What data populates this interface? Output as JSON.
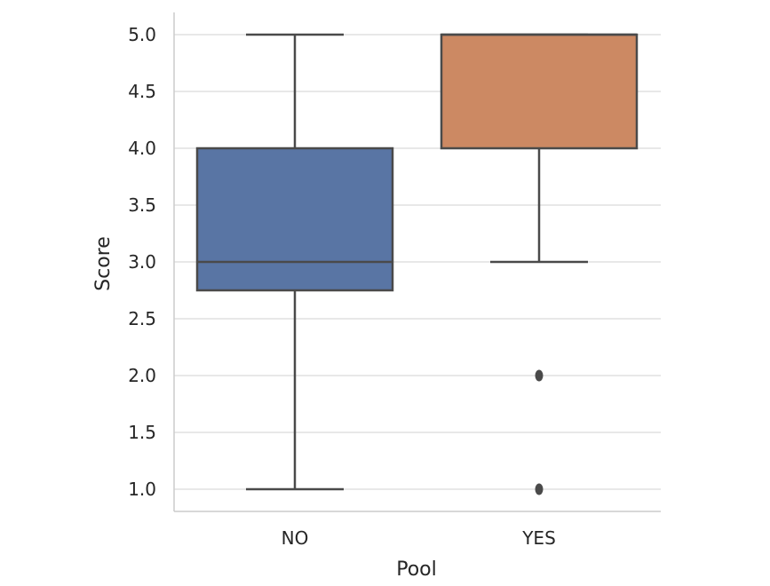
{
  "chart_data": {
    "type": "box",
    "xlabel": "Pool",
    "ylabel": "Score",
    "categories": [
      "NO",
      "YES"
    ],
    "ylim": [
      0.8,
      5.2
    ],
    "yticks": [
      "1.0",
      "1.5",
      "2.0",
      "2.5",
      "3.0",
      "3.5",
      "4.0",
      "4.5",
      "5.0"
    ],
    "grid": true,
    "boxes": [
      {
        "category": "NO",
        "whisker_low": 1.0,
        "q1": 2.75,
        "median": 3.0,
        "q3": 4.0,
        "whisker_high": 5.0,
        "outliers": [],
        "color": "#5975a4"
      },
      {
        "category": "YES",
        "whisker_low": 3.0,
        "q1": 4.0,
        "median": 5.0,
        "q3": 5.0,
        "whisker_high": 5.0,
        "outliers": [
          2.0,
          1.0
        ],
        "color": "#cc8963"
      }
    ],
    "colors": {
      "grid": "#d9d9d9",
      "axis": "#cccccc",
      "line": "#4a4a4a"
    }
  }
}
